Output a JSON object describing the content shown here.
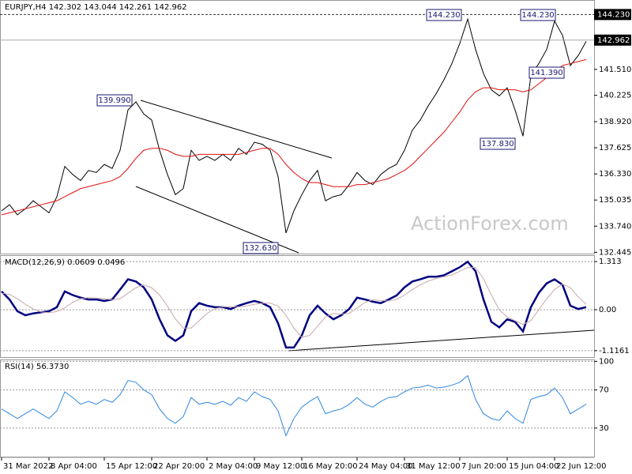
{
  "chart_data": [
    {
      "type": "line",
      "title": "EURJPY,H4  142.302 143.044 142.261 142.962",
      "watermark": "ActionForex.com",
      "ylim": [
        132.38,
        144.95
      ],
      "yticks": [
        {
          "value": 141.51,
          "label": "141.510"
        },
        140.225,
        {
          "value": 138.92,
          "label": "138.920"
        },
        137.625,
        {
          "value": 136.33,
          "label": "136.330"
        },
        135.035,
        {
          "value": 133.74,
          "label": "133.740"
        },
        132.445
      ],
      "price_markers": [
        {
          "value": 144.23,
          "label": "144.230"
        },
        {
          "value": 142.962,
          "label": "142.962"
        }
      ],
      "annotations": [
        "144.230",
        "144.230",
        "139.990",
        "132.630",
        "137.830",
        "141.390"
      ],
      "grid": false,
      "series": [
        {
          "color": "#000000",
          "values": [
            134.5,
            134.8,
            134.3,
            134.6,
            135.0,
            134.7,
            134.4,
            135.2,
            136.7,
            136.3,
            136.0,
            136.5,
            136.4,
            136.8,
            136.6,
            137.5,
            139.5,
            139.9,
            139.3,
            139.0,
            137.5,
            136.3,
            135.3,
            135.6,
            137.5,
            137.0,
            137.2,
            137.0,
            137.3,
            137.0,
            137.6,
            137.3,
            137.9,
            137.8,
            137.5,
            136.2,
            133.4,
            134.5,
            135.3,
            136.0,
            136.5,
            135.0,
            135.2,
            135.3,
            135.8,
            136.4,
            136.0,
            135.8,
            136.3,
            136.6,
            136.8,
            137.5,
            138.5,
            139.0,
            139.7,
            140.3,
            141.0,
            141.8,
            142.8,
            144.0,
            142.5,
            141.3,
            140.5,
            140.2,
            140.6,
            139.5,
            138.2,
            141.2,
            141.8,
            142.5,
            143.9,
            143.2,
            141.7,
            142.2,
            142.9
          ]
        },
        {
          "color": "#e01010",
          "values": [
            134.3,
            134.4,
            134.5,
            134.6,
            134.7,
            134.8,
            134.9,
            135.0,
            135.2,
            135.4,
            135.6,
            135.7,
            135.8,
            135.9,
            136.0,
            136.2,
            136.6,
            137.1,
            137.5,
            137.6,
            137.6,
            137.5,
            137.3,
            137.2,
            137.2,
            137.3,
            137.3,
            137.3,
            137.3,
            137.3,
            137.3,
            137.4,
            137.5,
            137.6,
            137.6,
            137.3,
            136.8,
            136.4,
            136.1,
            135.9,
            135.9,
            135.8,
            135.7,
            135.7,
            135.7,
            135.8,
            135.8,
            135.9,
            136.0,
            136.1,
            136.3,
            136.5,
            136.8,
            137.2,
            137.6,
            138.0,
            138.4,
            138.9,
            139.4,
            140.0,
            140.4,
            140.6,
            140.6,
            140.5,
            140.5,
            140.5,
            140.4,
            140.5,
            140.8,
            141.1,
            141.4,
            141.7,
            141.8,
            141.9,
            142.0
          ]
        }
      ]
    },
    {
      "type": "line",
      "title": "MACD(12,26,9) 0.0609 0.0496",
      "ylim": [
        -1.291,
        1.488
      ],
      "yticks": [
        1.313,
        {
          "value": 0,
          "label": "0.00"
        },
        -1.1161
      ],
      "grid": true,
      "series": [
        {
          "color": "#000080",
          "values": [
            0.5,
            0.28,
            -0.04,
            -0.15,
            -0.1,
            -0.07,
            -0.04,
            0.07,
            0.5,
            0.4,
            0.33,
            0.28,
            0.28,
            0.24,
            0.28,
            0.55,
            0.83,
            0.77,
            0.61,
            0.28,
            -0.26,
            -0.7,
            -0.85,
            -0.7,
            -0.04,
            0.18,
            0.11,
            0.07,
            0.07,
            0.02,
            0.11,
            0.18,
            0.24,
            0.18,
            0.07,
            -0.37,
            -1.03,
            -1.03,
            -0.7,
            -0.15,
            0.11,
            -0.1,
            -0.26,
            -0.15,
            0.02,
            0.33,
            0.28,
            0.22,
            0.18,
            0.28,
            0.39,
            0.61,
            0.77,
            0.83,
            0.9,
            0.9,
            0.94,
            1.05,
            1.16,
            1.31,
            1.05,
            0.28,
            -0.33,
            -0.48,
            -0.26,
            -0.33,
            -0.59,
            0.07,
            0.46,
            0.72,
            0.83,
            0.68,
            0.11,
            0.02,
            0.07
          ]
        },
        {
          "color": "#c8a8a8",
          "values": [
            0.45,
            0.42,
            0.3,
            0.15,
            0.02,
            -0.06,
            -0.08,
            -0.05,
            0.05,
            0.2,
            0.3,
            0.33,
            0.32,
            0.3,
            0.27,
            0.3,
            0.45,
            0.6,
            0.68,
            0.6,
            0.4,
            0.1,
            -0.25,
            -0.5,
            -0.5,
            -0.3,
            -0.1,
            0.03,
            0.08,
            0.08,
            0.08,
            0.1,
            0.15,
            0.18,
            0.18,
            0.1,
            -0.15,
            -0.5,
            -0.75,
            -0.7,
            -0.45,
            -0.2,
            -0.1,
            -0.12,
            -0.1,
            0.05,
            0.2,
            0.27,
            0.25,
            0.24,
            0.28,
            0.4,
            0.55,
            0.68,
            0.78,
            0.85,
            0.9,
            0.95,
            1.05,
            1.15,
            1.15,
            0.85,
            0.4,
            0.0,
            -0.2,
            -0.3,
            -0.4,
            -0.3,
            0.0,
            0.3,
            0.55,
            0.7,
            0.6,
            0.35,
            0.15
          ]
        }
      ]
    },
    {
      "type": "line",
      "title": "RSI(14) 56.3730",
      "ylim": [
        0,
        102
      ],
      "yticks": [
        100,
        70,
        30
      ],
      "grid": true,
      "categories": [
        "31 Mar 2022",
        null,
        null,
        null,
        null,
        null,
        "8 Apr 04:00",
        null,
        null,
        null,
        null,
        null,
        null,
        "15 Apr 12:00",
        null,
        null,
        null,
        null,
        null,
        "22 Apr 20:00",
        null,
        null,
        null,
        null,
        null,
        null,
        "2 May 04:00",
        null,
        null,
        null,
        null,
        null,
        "9 May 12:00",
        null,
        null,
        null,
        null,
        null,
        "16 May 20:00",
        null,
        null,
        null,
        null,
        null,
        null,
        "24 May 04:00",
        null,
        null,
        null,
        null,
        null,
        "31 May 12:00",
        null,
        null,
        null,
        null,
        null,
        null,
        "7 Jun 20:00",
        null,
        null,
        null,
        null,
        null,
        "15 Jun 04:00",
        null,
        null,
        null,
        null,
        null,
        "22 Jun 12:00",
        null,
        null,
        null,
        null
      ],
      "series": [
        {
          "color": "#2f86e0",
          "values": [
            50,
            45,
            40,
            45,
            50,
            45,
            40,
            48,
            68,
            62,
            55,
            58,
            55,
            60,
            57,
            65,
            80,
            78,
            70,
            65,
            50,
            40,
            35,
            42,
            62,
            55,
            57,
            55,
            58,
            54,
            62,
            58,
            68,
            63,
            60,
            48,
            22,
            40,
            52,
            58,
            63,
            45,
            48,
            50,
            55,
            62,
            55,
            52,
            58,
            62,
            63,
            68,
            72,
            73,
            75,
            72,
            73,
            75,
            78,
            85,
            60,
            45,
            40,
            38,
            48,
            40,
            35,
            60,
            63,
            65,
            72,
            62,
            45,
            50,
            55
          ]
        }
      ]
    }
  ]
}
